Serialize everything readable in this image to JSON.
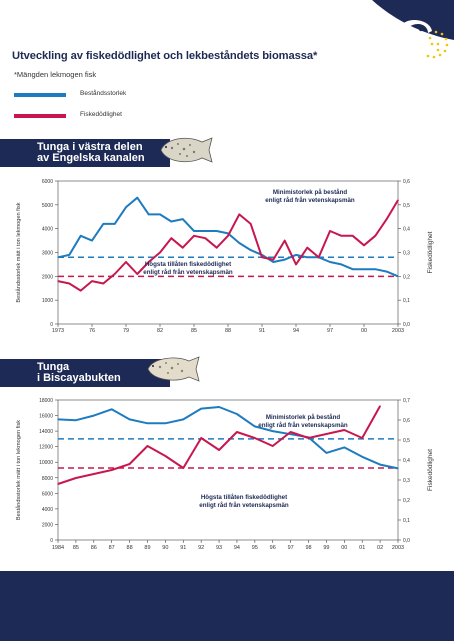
{
  "header": {
    "title": "Utveckling av fiskedödlighet och lekbeståndets biomassa*",
    "subtitle": "*Mängden lekmogen fisk",
    "colors": {
      "navy": "#1d2a55",
      "star": "#f2c500",
      "blue": "#1e7bbf",
      "red": "#c8174f"
    }
  },
  "legend": [
    {
      "label": "Beståndsstorlek",
      "color": "#1e7bbf"
    },
    {
      "label": "Fiskedödlighet",
      "color": "#c8174f"
    }
  ],
  "panels": [
    {
      "title_lines": [
        "Tunga i västra delen",
        "av Engelska kanalen"
      ],
      "fish_icon": "sole-fish-icon",
      "ylabel_left": "Beståndsstorlek mätt i ton lekmogen fisk",
      "ylabel_right": "Fiskedödlighet",
      "x_ticks": [
        "1973",
        "76",
        "79",
        "82",
        "85",
        "88",
        "91",
        "94",
        "97",
        "00",
        "2003"
      ],
      "y_left_ticks": [
        "0",
        "1000",
        "2000",
        "3000",
        "4000",
        "5000",
        "6000"
      ],
      "y_right_ticks": [
        "0,0",
        "0,1",
        "0,2",
        "0,3",
        "0,4",
        "0,5",
        "0,6"
      ],
      "annotation_blue": [
        "Minimistorlek på bestånd",
        "enligt råd från vetenskapsmän"
      ],
      "annotation_red": [
        "Högsta tillåten fiskedödlighet",
        "enligt råd från vetenskapsmän"
      ]
    },
    {
      "title_lines": [
        "Tunga",
        "i Biscayabukten"
      ],
      "fish_icon": "sole-fish-icon",
      "ylabel_left": "Beståndsstorlek mätt i ton lekmogen fisk",
      "ylabel_right": "Fiskedödlighet",
      "x_ticks": [
        "1984",
        "85",
        "86",
        "87",
        "88",
        "89",
        "90",
        "91",
        "92",
        "93",
        "94",
        "95",
        "96",
        "97",
        "98",
        "99",
        "00",
        "01",
        "02",
        "2003"
      ],
      "y_left_ticks": [
        "0",
        "2000",
        "4000",
        "6000",
        "8000",
        "10000",
        "12000",
        "14000",
        "16000",
        "18000"
      ],
      "y_right_ticks": [
        "0,0",
        "0,1",
        "0,2",
        "0,3",
        "0,4",
        "0,5",
        "0,6",
        "0,7"
      ],
      "annotation_blue": [
        "Minimistorlek på bestånd",
        "enligt råd från vetenskapsmän"
      ],
      "annotation_red": [
        "Högsta tillåten fiskedödlighet",
        "enligt råd från vetenskapsmän"
      ]
    }
  ],
  "chart_data": [
    {
      "type": "line",
      "title": "Tunga i västra delen av Engelska kanalen",
      "ylabel": "Beståndsstorlek mätt i ton lekmogen fisk",
      "y2label": "Fiskedödlighet",
      "x": [
        1973,
        1974,
        1975,
        1976,
        1977,
        1978,
        1979,
        1980,
        1981,
        1982,
        1983,
        1984,
        1985,
        1986,
        1987,
        1988,
        1989,
        1990,
        1991,
        1992,
        1993,
        1994,
        1995,
        1996,
        1997,
        1998,
        1999,
        2000,
        2001,
        2002,
        2003
      ],
      "ylim": [
        0,
        6000
      ],
      "y2lim": [
        0,
        0.6
      ],
      "series": [
        {
          "name": "Beståndsstorlek",
          "axis": "left",
          "color": "#1e7bbf",
          "values": [
            2800,
            2900,
            3700,
            3500,
            4200,
            4200,
            4900,
            5300,
            4600,
            4600,
            4300,
            4400,
            3900,
            3900,
            3900,
            3800,
            3400,
            3100,
            2900,
            2600,
            2700,
            2900,
            2800,
            2800,
            2600,
            2500,
            2300,
            2300,
            2300,
            2200,
            2000
          ]
        },
        {
          "name": "Fiskedödlighet",
          "axis": "right",
          "color": "#c8174f",
          "values": [
            0.18,
            0.17,
            0.14,
            0.18,
            0.17,
            0.21,
            0.26,
            0.21,
            0.26,
            0.3,
            0.36,
            0.32,
            0.37,
            0.36,
            0.32,
            0.37,
            0.46,
            0.42,
            0.28,
            0.27,
            0.35,
            0.25,
            0.32,
            0.28,
            0.39,
            0.37,
            0.37,
            0.33,
            0.37,
            0.44,
            0.52
          ]
        }
      ],
      "reference_lines": [
        {
          "name": "Minimistorlek på bestånd",
          "axis": "left",
          "value": 2800,
          "color": "#1e7bbf",
          "style": "dashed"
        },
        {
          "name": "Högsta tillåten fiskedödlighet",
          "axis": "right",
          "value": 0.2,
          "color": "#c8174f",
          "style": "dashed"
        }
      ],
      "grid": false
    },
    {
      "type": "line",
      "title": "Tunga i Biscayabukten",
      "ylabel": "Beståndsstorlek mätt i ton lekmogen fisk",
      "y2label": "Fiskedödlighet",
      "x": [
        1984,
        1985,
        1986,
        1987,
        1988,
        1989,
        1990,
        1991,
        1992,
        1993,
        1994,
        1995,
        1996,
        1997,
        1998,
        1999,
        2000,
        2001,
        2002,
        2003
      ],
      "ylim": [
        0,
        18000
      ],
      "y2lim": [
        0,
        0.7
      ],
      "series": [
        {
          "name": "Beståndsstorlek",
          "axis": "left",
          "color": "#1e7bbf",
          "values": [
            15500,
            15400,
            16000,
            16800,
            15500,
            15000,
            15000,
            15500,
            16900,
            17100,
            16200,
            14600,
            14000,
            13600,
            13200,
            11200,
            11900,
            10700,
            9700,
            9200
          ]
        },
        {
          "name": "Fiskedödlighet",
          "axis": "right",
          "color": "#c8174f",
          "values": [
            0.28,
            0.31,
            0.33,
            0.35,
            0.38,
            0.47,
            0.42,
            0.36,
            0.51,
            0.45,
            0.54,
            0.51,
            0.47,
            0.54,
            0.51,
            0.53,
            0.55,
            0.51,
            0.67,
            null
          ]
        }
      ],
      "reference_lines": [
        {
          "name": "Minimistorlek på bestånd",
          "axis": "left",
          "value": 13000,
          "color": "#1e7bbf",
          "style": "dashed"
        },
        {
          "name": "Högsta tillåten fiskedödlighet",
          "axis": "right",
          "value": 0.36,
          "color": "#c8174f",
          "style": "dashed"
        }
      ],
      "grid": false
    }
  ]
}
